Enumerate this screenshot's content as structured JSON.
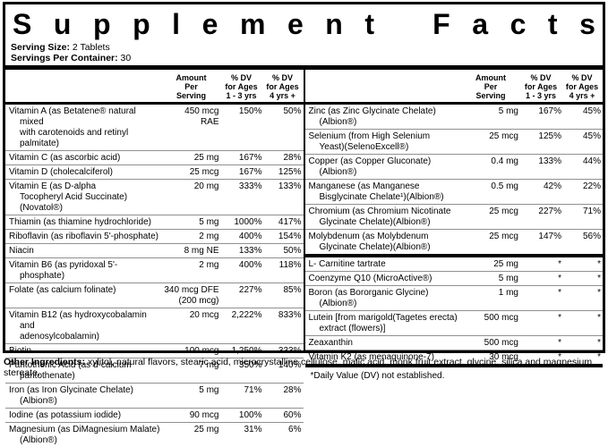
{
  "header": {
    "title": "Supplement Facts",
    "serving_size_label": "Serving Size:",
    "serving_size_value": "2 Tablets",
    "servings_per_container_label": "Servings Per Container:",
    "servings_per_container_value": "30"
  },
  "column_headers": {
    "amount": "Amount\nPer\nServing",
    "dv_ages_1_3": "% DV\nfor Ages\n1 - 3 yrs",
    "dv_ages_4_plus": "% DV\nfor Ages\n4 yrs +"
  },
  "left_rows": [
    {
      "name": "Vitamin A (as Betatene® natural mixed\nwith carotenoids and retinyl palmitate)",
      "amount": "450 mcg\nRAE",
      "dv1": "150%",
      "dv2": "50%"
    },
    {
      "name": "Vitamin C (as ascorbic acid)",
      "amount": "25 mg",
      "dv1": "167%",
      "dv2": "28%"
    },
    {
      "name": "Vitamin D (cholecalciferol)",
      "amount": "25 mcg",
      "dv1": "167%",
      "dv2": "125%"
    },
    {
      "name": "Vitamin E (as D-alpha\nTocopheryl Acid Succinate)(Novatol®)",
      "amount": "20 mg",
      "dv1": "333%",
      "dv2": "133%"
    },
    {
      "name": "Thiamin (as thiamine hydrochloride)",
      "amount": "5 mg",
      "dv1": "1000%",
      "dv2": "417%"
    },
    {
      "name": "Riboflavin (as riboflavin 5'-phosphate)",
      "amount": "2 mg",
      "dv1": "400%",
      "dv2": "154%"
    },
    {
      "name": "Niacin",
      "amount": "8 mg NE",
      "dv1": "133%",
      "dv2": "50%"
    },
    {
      "name": "Vitamin B6 (as pyridoxal 5'-phosphate)",
      "amount": "2 mg",
      "dv1": "400%",
      "dv2": "118%"
    },
    {
      "name": "Folate (as calcium folinate)",
      "amount": "340 mcg DFE\n(200 mcg)",
      "dv1": "227%",
      "dv2": "85%"
    },
    {
      "name": "Vitamin B12 (as hydroxycobalamin and\nadenosylcobalamin)",
      "amount": "20 mcg",
      "dv1": "2,222%",
      "dv2": "833%"
    },
    {
      "name": "Biotin",
      "amount": "100 mcg",
      "dv1": "1,250%",
      "dv2": "333%"
    },
    {
      "name": "Pantothenic Acid (as d-calcium pantothenate)",
      "amount": "7 mg",
      "dv1": "350%",
      "dv2": "140%"
    },
    {
      "name": "Iron (as Iron Glycinate Chelate)(Albion®)",
      "amount": "5 mg",
      "dv1": "71%",
      "dv2": "28%"
    },
    {
      "name": "Iodine (as potassium iodide)",
      "amount": "90 mcg",
      "dv1": "100%",
      "dv2": "60%"
    },
    {
      "name": "Magnesium (as DiMagnesium Malate)(Albion®)",
      "amount": "25 mg",
      "dv1": "31%",
      "dv2": "6%"
    }
  ],
  "right_rows": [
    {
      "name": "Zinc (as Zinc Glycinate Chelate)(Albion®)",
      "amount": "5 mg",
      "dv1": "167%",
      "dv2": "45%"
    },
    {
      "name": "Selenium (from High Selenium\nYeast)(SelenoExcell®)",
      "amount": "25 mcg",
      "dv1": "125%",
      "dv2": "45%"
    },
    {
      "name": "Copper (as Copper Gluconate)(Albion®)",
      "amount": "0.4 mg",
      "dv1": "133%",
      "dv2": "44%"
    },
    {
      "name": "Manganese (as Manganese\nBisglycinate Chelate¹)(Albion®)",
      "amount": "0.5 mg",
      "dv1": "42%",
      "dv2": "22%"
    },
    {
      "name": "Chromium (as Chromium Nicotinate\nGlycinate Chelate)(Albion®)",
      "amount": "25 mcg",
      "dv1": "227%",
      "dv2": "71%"
    },
    {
      "name": "Molybdenum (as Molybdenum\nGlycinate Chelate)(Albion®)",
      "amount": "25 mcg",
      "dv1": "147%",
      "dv2": "56%"
    }
  ],
  "right_rows_no_dv": [
    {
      "name": "L- Carnitine tartrate",
      "amount": "25 mg",
      "dv1": "*",
      "dv2": "*"
    },
    {
      "name": "Coenzyme Q10 (MicroActive®)",
      "amount": "5 mg",
      "dv1": "*",
      "dv2": "*"
    },
    {
      "name": "Boron (as Bororganic Glycine)(Albion®)",
      "amount": "1 mg",
      "dv1": "*",
      "dv2": "*"
    },
    {
      "name": "Lutein [from marigold(Tagetes erecta)\nextract (flowers)]",
      "amount": "500 mcg",
      "dv1": "*",
      "dv2": "*"
    },
    {
      "name": "Zeaxanthin",
      "amount": "500 mcg",
      "dv1": "*",
      "dv2": "*"
    },
    {
      "name": "Vitamin K2 (as menaquinone-7)",
      "amount": "30 mcg",
      "dv1": "*",
      "dv2": "*"
    }
  ],
  "footnote": "*Daily Value (DV) not established.",
  "other_ingredients": {
    "label": "Other Ingredients:",
    "text": "xylitol, natural flavors, stearic acid, microcrystalline cellulose, malic acid, monk fruit extract, glycine, silica and magnesium stereate."
  },
  "colors": {
    "border": "#000000",
    "row_divider": "#909090",
    "background": "#ffffff",
    "text": "#000000"
  }
}
